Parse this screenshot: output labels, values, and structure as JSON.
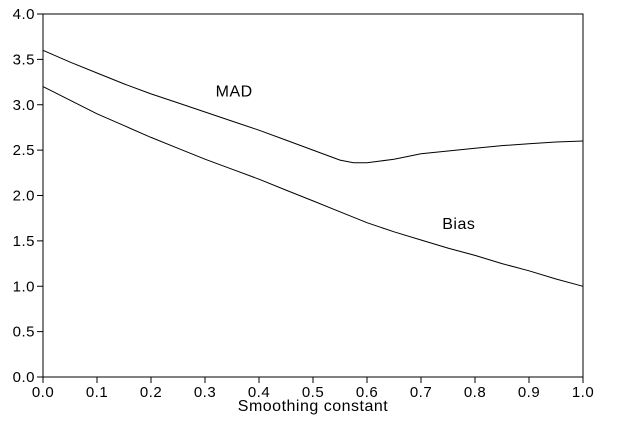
{
  "page": {
    "background_color": "#ffffff",
    "line_color": "#000000",
    "text_color": "#000000"
  },
  "chart_data": {
    "type": "line",
    "title": "",
    "xlabel": "Smoothing constant",
    "ylabel": "",
    "xlim": [
      0.0,
      1.0
    ],
    "ylim": [
      0.0,
      4.0
    ],
    "grid": false,
    "legend_position": "inline-labels",
    "x_tick_values": [
      0.0,
      0.1,
      0.2,
      0.3,
      0.4,
      0.5,
      0.6,
      0.7,
      0.8,
      0.9,
      1.0
    ],
    "x_tick_labels": [
      "0.0",
      "0.1",
      "0.2",
      "0.3",
      "0.4",
      "0.5",
      "0.6",
      "0.7",
      "0.8",
      "0.9",
      "1.0"
    ],
    "y_tick_values": [
      0.0,
      0.5,
      1.0,
      1.5,
      2.0,
      2.5,
      3.0,
      3.5,
      4.0
    ],
    "y_tick_labels": [
      "0.0",
      "0.5",
      "1.0",
      "1.5",
      "2.0",
      "2.5",
      "3.0",
      "3.5",
      "4.0"
    ],
    "series": [
      {
        "name": "MAD",
        "color": "#000000",
        "label_pos": {
          "x": 0.354,
          "y": 3.15
        },
        "x": [
          0.0,
          0.05,
          0.1,
          0.15,
          0.2,
          0.25,
          0.3,
          0.35,
          0.4,
          0.45,
          0.5,
          0.55,
          0.575,
          0.6,
          0.625,
          0.65,
          0.7,
          0.75,
          0.8,
          0.85,
          0.9,
          0.95,
          1.0
        ],
        "y": [
          3.6,
          3.47,
          3.35,
          3.23,
          3.12,
          3.02,
          2.92,
          2.82,
          2.72,
          2.61,
          2.5,
          2.39,
          2.36,
          2.36,
          2.38,
          2.4,
          2.46,
          2.49,
          2.52,
          2.55,
          2.57,
          2.59,
          2.6
        ]
      },
      {
        "name": "Bias",
        "color": "#000000",
        "label_pos": {
          "x": 0.77,
          "y": 1.69
        },
        "x": [
          0.0,
          0.05,
          0.1,
          0.15,
          0.2,
          0.25,
          0.3,
          0.35,
          0.4,
          0.45,
          0.5,
          0.55,
          0.6,
          0.65,
          0.7,
          0.75,
          0.8,
          0.85,
          0.9,
          0.95,
          1.0
        ],
        "y": [
          3.2,
          3.05,
          2.9,
          2.77,
          2.64,
          2.52,
          2.4,
          2.29,
          2.18,
          2.06,
          1.94,
          1.82,
          1.7,
          1.6,
          1.51,
          1.42,
          1.34,
          1.25,
          1.17,
          1.08,
          1.0
        ]
      }
    ]
  }
}
